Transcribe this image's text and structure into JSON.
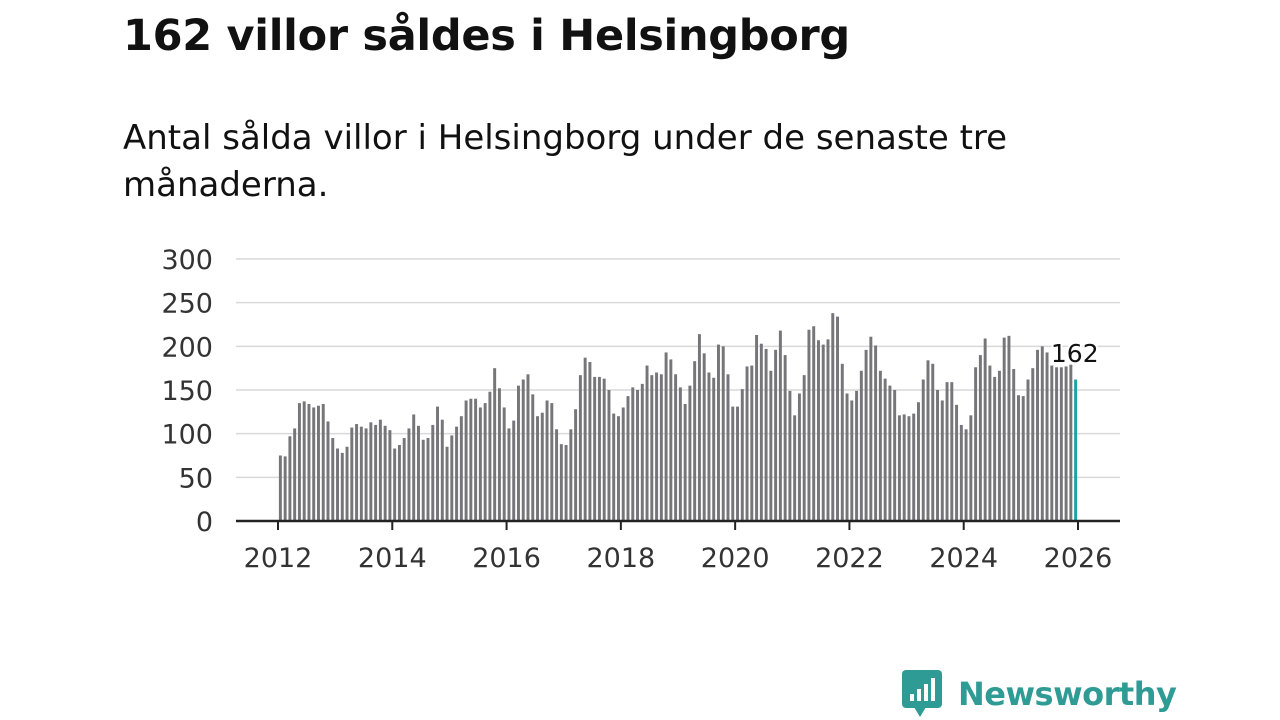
{
  "header": {
    "title": "162 villor såldes i Helsingborg",
    "subtitle": "Antal sålda villor i Helsingborg under de senaste tre månaderna."
  },
  "brand": {
    "name": "Newsworthy",
    "icon": "newsworthy-logo-icon",
    "color": "#2f9b95"
  },
  "colors": {
    "bar": "#76757a",
    "highlight": "#1aa3a3",
    "grid": "#d9d9d9",
    "axis": "#222222",
    "text": "#333333"
  },
  "chart_data": {
    "type": "bar",
    "title": "162 villor såldes i Helsingborg",
    "subtitle": "Antal sålda villor i Helsingborg under de senaste tre månaderna.",
    "xlabel": "",
    "ylabel": "",
    "x_ticks": [
      "2012",
      "2014",
      "2016",
      "2018",
      "2020",
      "2022",
      "2024",
      "2026"
    ],
    "x_tick_values": [
      2012,
      2014,
      2016,
      2018,
      2020,
      2022,
      2024,
      2026
    ],
    "xlim": [
      2011.6,
      2026.4
    ],
    "y_ticks": [
      "0",
      "50",
      "100",
      "150",
      "200",
      "250",
      "300"
    ],
    "y_tick_values": [
      0,
      50,
      100,
      150,
      200,
      250,
      300
    ],
    "ylim": [
      0,
      300
    ],
    "grid": true,
    "start_period": "2012-01",
    "frequency": "monthly",
    "values": [
      75,
      74,
      97,
      106,
      135,
      137,
      134,
      130,
      132,
      134,
      114,
      95,
      83,
      78,
      85,
      107,
      111,
      108,
      106,
      113,
      110,
      116,
      109,
      104,
      83,
      87,
      95,
      106,
      122,
      109,
      93,
      95,
      110,
      131,
      116,
      85,
      98,
      108,
      120,
      138,
      140,
      140,
      130,
      135,
      148,
      175,
      152,
      130,
      106,
      115,
      155,
      162,
      168,
      145,
      120,
      124,
      138,
      135,
      105,
      88,
      87,
      105,
      128,
      167,
      187,
      182,
      165,
      165,
      163,
      150,
      123,
      120,
      130,
      143,
      153,
      150,
      157,
      178,
      167,
      170,
      168,
      193,
      185,
      168,
      153,
      134,
      155,
      183,
      214,
      192,
      170,
      164,
      202,
      200,
      168,
      131,
      131,
      151,
      177,
      178,
      213,
      203,
      197,
      172,
      196,
      218,
      190,
      149,
      121,
      146,
      167,
      219,
      223,
      207,
      202,
      208,
      238,
      234,
      180,
      146,
      138,
      149,
      172,
      196,
      211,
      201,
      172,
      163,
      155,
      150,
      121,
      122,
      120,
      123,
      136,
      162,
      184,
      180,
      150,
      138,
      159,
      159,
      133,
      110,
      105,
      121,
      176,
      190,
      209,
      178,
      165,
      172,
      210,
      212,
      174,
      144,
      143,
      162,
      175,
      196,
      200,
      193,
      178,
      176,
      176,
      177,
      179,
      162
    ],
    "highlight": {
      "index": 167,
      "period": "2025-12",
      "value": 162,
      "label": "162"
    }
  }
}
